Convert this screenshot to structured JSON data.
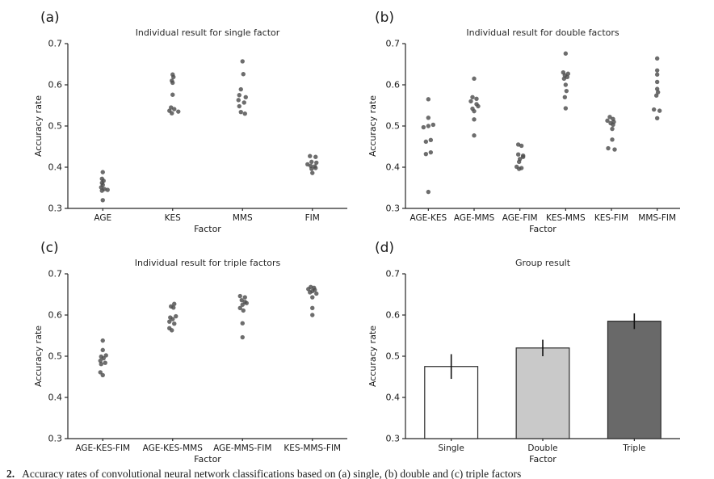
{
  "caption": {
    "prefix": "2.",
    "text": "Accuracy rates of convolutional neural network classifications based on (a) single, (b) double and (c) triple factors"
  },
  "style": {
    "axis_color": "#262626",
    "dot_color": "#4d4d4d",
    "bar_edge_color": "#2b2b2b",
    "error_bar_color": "#111111"
  },
  "chart_data": [
    {
      "type": "scatter",
      "letter": "(a)",
      "title": "Individual result for single factor",
      "xlabel": "Factor",
      "ylabel": "Accuracy rate",
      "ylim": [
        0.3,
        0.7
      ],
      "yticks": [
        0.3,
        0.4,
        0.5,
        0.6,
        0.7
      ],
      "categories": [
        "AGE",
        "KES",
        "MMS",
        "FIM"
      ],
      "series": [
        {
          "category": "AGE",
          "values": [
            0.388,
            0.372,
            0.367,
            0.362,
            0.357,
            0.351,
            0.347,
            0.345,
            0.343,
            0.32
          ],
          "jitter": [
            0,
            -1,
            1,
            -1,
            0,
            -2,
            2,
            6,
            -1,
            0
          ]
        },
        {
          "category": "KES",
          "values": [
            0.625,
            0.619,
            0.61,
            0.605,
            0.576,
            0.545,
            0.541,
            0.537,
            0.535,
            0.531
          ],
          "jitter": [
            0,
            1,
            -1,
            0,
            0,
            -2,
            2,
            -4,
            7,
            -1
          ]
        },
        {
          "category": "MMS",
          "values": [
            0.657,
            0.626,
            0.589,
            0.575,
            0.57,
            0.563,
            0.557,
            0.548,
            0.534,
            0.53
          ],
          "jitter": [
            0,
            1,
            -2,
            -4,
            4,
            -5,
            2,
            -4,
            -2,
            3
          ]
        },
        {
          "category": "FIM",
          "values": [
            0.427,
            0.425,
            0.413,
            0.411,
            0.407,
            0.403,
            0.402,
            0.398,
            0.396,
            0.386
          ],
          "jitter": [
            -3,
            4,
            -1,
            5,
            -6,
            -2,
            3,
            4,
            -1,
            0
          ]
        }
      ]
    },
    {
      "type": "scatter",
      "letter": "(b)",
      "title": "Individual result for double factors",
      "xlabel": "Factor",
      "ylabel": "Accuracy rate",
      "ylim": [
        0.3,
        0.7
      ],
      "yticks": [
        0.3,
        0.4,
        0.5,
        0.6,
        0.7
      ],
      "categories": [
        "AGE-KES",
        "AGE-MMS",
        "AGE-FIM",
        "KES-MMS",
        "KES-FIM",
        "MMS-FIM"
      ],
      "series": [
        {
          "category": "AGE-KES",
          "values": [
            0.565,
            0.52,
            0.503,
            0.5,
            0.497,
            0.466,
            0.462,
            0.436,
            0.432,
            0.34
          ],
          "jitter": [
            0,
            0,
            6,
            0,
            -6,
            3,
            -3,
            3,
            -3,
            0
          ]
        },
        {
          "category": "AGE-MMS",
          "values": [
            0.615,
            0.57,
            0.566,
            0.56,
            0.553,
            0.548,
            0.542,
            0.536,
            0.516,
            0.477
          ],
          "jitter": [
            0,
            -2,
            3,
            -4,
            3,
            5,
            -2,
            0,
            0,
            0
          ]
        },
        {
          "category": "AGE-FIM",
          "values": [
            0.455,
            0.452,
            0.431,
            0.428,
            0.425,
            0.42,
            0.413,
            0.401,
            0.398,
            0.396
          ],
          "jitter": [
            -2,
            2,
            -2,
            4,
            4,
            0,
            -1,
            -4,
            2,
            -1
          ]
        },
        {
          "category": "KES-MMS",
          "values": [
            0.676,
            0.63,
            0.627,
            0.623,
            0.619,
            0.615,
            0.6,
            0.585,
            0.57,
            0.543
          ],
          "jitter": [
            0,
            -3,
            3,
            -1,
            2,
            -2,
            0,
            1,
            -1,
            0
          ]
        },
        {
          "category": "KES-FIM",
          "values": [
            0.522,
            0.517,
            0.513,
            0.51,
            0.507,
            0.503,
            0.493,
            0.467,
            0.446,
            0.443
          ],
          "jitter": [
            -2,
            2,
            -5,
            3,
            -1,
            2,
            1,
            1,
            -4,
            4
          ]
        },
        {
          "category": "MMS-FIM",
          "values": [
            0.664,
            0.635,
            0.625,
            0.607,
            0.59,
            0.582,
            0.574,
            0.54,
            0.537,
            0.519
          ],
          "jitter": [
            0,
            0,
            0,
            0,
            0,
            1,
            -1,
            -4,
            3,
            0
          ]
        }
      ]
    },
    {
      "type": "scatter",
      "letter": "(c)",
      "title": "Individual result for triple factors",
      "xlabel": "Factor",
      "ylabel": "Accuracy rate",
      "ylim": [
        0.3,
        0.7
      ],
      "yticks": [
        0.3,
        0.4,
        0.5,
        0.6,
        0.7
      ],
      "categories": [
        "AGE-KES-FIM",
        "AGE-KES-MMS",
        "AGE-MMS-FIM",
        "KES-MMS-FIM"
      ],
      "series": [
        {
          "category": "AGE-KES-FIM",
          "values": [
            0.538,
            0.515,
            0.502,
            0.499,
            0.495,
            0.489,
            0.484,
            0.481,
            0.461,
            0.454
          ],
          "jitter": [
            0,
            0,
            4,
            -2,
            1,
            -3,
            3,
            -2,
            -3,
            0
          ]
        },
        {
          "category": "AGE-KES-MMS",
          "values": [
            0.627,
            0.621,
            0.618,
            0.597,
            0.594,
            0.59,
            0.584,
            0.579,
            0.568,
            0.563
          ],
          "jitter": [
            2,
            -2,
            1,
            4,
            -3,
            0,
            -4,
            2,
            -4,
            -1
          ]
        },
        {
          "category": "AGE-MMS-FIM",
          "values": [
            0.646,
            0.643,
            0.636,
            0.632,
            0.629,
            0.625,
            0.617,
            0.611,
            0.58,
            0.546
          ],
          "jitter": [
            -3,
            3,
            -1,
            3,
            5,
            0,
            -3,
            1,
            0,
            0
          ]
        },
        {
          "category": "KES-MMS-FIM",
          "values": [
            0.668,
            0.666,
            0.663,
            0.661,
            0.658,
            0.655,
            0.652,
            0.643,
            0.617,
            0.6
          ],
          "jitter": [
            -2,
            2,
            -5,
            3,
            0,
            -3,
            5,
            0,
            0,
            0
          ]
        }
      ]
    },
    {
      "type": "bar",
      "letter": "(d)",
      "title": "Group result",
      "xlabel": "Factor",
      "ylabel": "Accuracy rate",
      "ylim": [
        0.3,
        0.7
      ],
      "yticks": [
        0.3,
        0.4,
        0.5,
        0.6,
        0.7
      ],
      "categories": [
        "Single",
        "Double",
        "Triple"
      ],
      "values": [
        0.475,
        0.52,
        0.585
      ],
      "error_low": [
        0.445,
        0.5,
        0.566
      ],
      "error_high": [
        0.505,
        0.54,
        0.604
      ],
      "bar_colors": [
        "#ffffff",
        "#c9c9c9",
        "#696969"
      ]
    }
  ]
}
